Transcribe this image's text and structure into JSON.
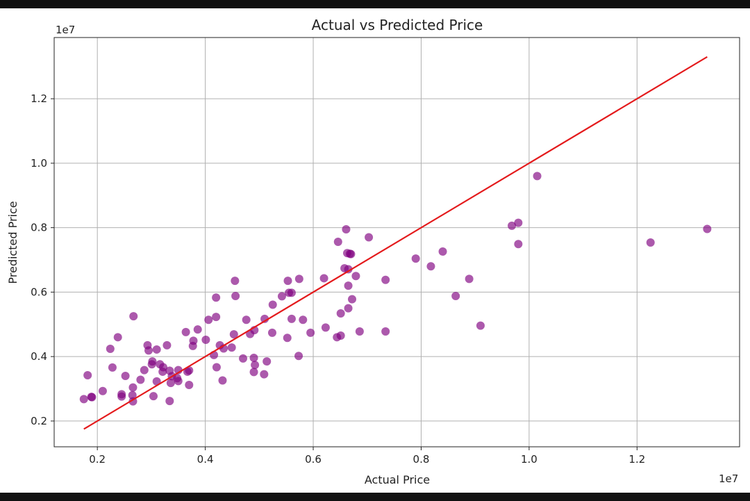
{
  "chart_data": {
    "type": "scatter",
    "title": "Actual vs Predicted Price",
    "xlabel": "Actual Price",
    "ylabel": "Predicted Price",
    "x_offset_label": "1e7",
    "y_offset_label": "1e7",
    "xlim": [
      1200000,
      13900000
    ],
    "ylim": [
      1200000,
      13900000
    ],
    "x_ticks": [
      2000000,
      4000000,
      6000000,
      8000000,
      10000000,
      12000000
    ],
    "x_tick_labels": [
      "0.2",
      "0.4",
      "0.6",
      "0.8",
      "1.0",
      "1.2"
    ],
    "y_ticks": [
      2000000,
      4000000,
      6000000,
      8000000,
      10000000,
      12000000
    ],
    "y_tick_labels": [
      "0.2",
      "0.4",
      "0.6",
      "0.8",
      "1.0",
      "1.2"
    ],
    "grid": true,
    "point_color": "#800080",
    "line_color": "#e41a1c",
    "reference_line": [
      [
        1750000,
        1750000
      ],
      [
        13300000,
        13300000
      ]
    ],
    "points": [
      [
        1750000,
        2680000
      ],
      [
        1820000,
        3420000
      ],
      [
        1890000,
        2750000
      ],
      [
        1900000,
        2740000
      ],
      [
        2100000,
        2930000
      ],
      [
        2240000,
        4240000
      ],
      [
        2280000,
        3660000
      ],
      [
        2380000,
        4600000
      ],
      [
        2450000,
        2760000
      ],
      [
        2450000,
        2830000
      ],
      [
        2520000,
        3400000
      ],
      [
        2650000,
        2800000
      ],
      [
        2660000,
        2610000
      ],
      [
        2660000,
        3040000
      ],
      [
        2670000,
        5250000
      ],
      [
        2800000,
        3280000
      ],
      [
        2870000,
        3580000
      ],
      [
        2930000,
        4350000
      ],
      [
        2950000,
        4190000
      ],
      [
        3010000,
        3760000
      ],
      [
        3020000,
        3850000
      ],
      [
        3040000,
        2770000
      ],
      [
        3100000,
        4220000
      ],
      [
        3100000,
        3230000
      ],
      [
        3160000,
        3760000
      ],
      [
        3210000,
        3530000
      ],
      [
        3220000,
        3670000
      ],
      [
        3290000,
        4350000
      ],
      [
        3340000,
        3560000
      ],
      [
        3340000,
        2620000
      ],
      [
        3360000,
        3180000
      ],
      [
        3380000,
        3390000
      ],
      [
        3480000,
        3330000
      ],
      [
        3500000,
        3240000
      ],
      [
        3500000,
        3580000
      ],
      [
        3640000,
        4760000
      ],
      [
        3670000,
        3530000
      ],
      [
        3700000,
        3570000
      ],
      [
        3700000,
        3120000
      ],
      [
        3770000,
        4330000
      ],
      [
        3780000,
        4490000
      ],
      [
        3860000,
        4840000
      ],
      [
        4010000,
        4520000
      ],
      [
        4060000,
        5140000
      ],
      [
        4160000,
        4050000
      ],
      [
        4200000,
        5230000
      ],
      [
        4200000,
        5830000
      ],
      [
        4210000,
        3670000
      ],
      [
        4270000,
        4350000
      ],
      [
        4320000,
        3260000
      ],
      [
        4340000,
        4250000
      ],
      [
        4490000,
        4280000
      ],
      [
        4530000,
        4690000
      ],
      [
        4550000,
        6350000
      ],
      [
        4560000,
        5880000
      ],
      [
        4700000,
        3940000
      ],
      [
        4760000,
        5140000
      ],
      [
        4830000,
        4700000
      ],
      [
        4900000,
        3520000
      ],
      [
        4900000,
        3960000
      ],
      [
        4910000,
        4820000
      ],
      [
        4920000,
        3740000
      ],
      [
        5090000,
        3450000
      ],
      [
        5100000,
        5170000
      ],
      [
        5140000,
        3850000
      ],
      [
        5240000,
        4740000
      ],
      [
        5250000,
        5610000
      ],
      [
        5420000,
        5870000
      ],
      [
        5520000,
        4580000
      ],
      [
        5530000,
        6350000
      ],
      [
        5550000,
        5980000
      ],
      [
        5600000,
        5170000
      ],
      [
        5600000,
        5980000
      ],
      [
        5730000,
        4020000
      ],
      [
        5740000,
        6410000
      ],
      [
        5810000,
        5140000
      ],
      [
        5950000,
        4740000
      ],
      [
        6200000,
        6430000
      ],
      [
        6230000,
        4900000
      ],
      [
        6440000,
        4600000
      ],
      [
        6460000,
        7560000
      ],
      [
        6510000,
        5340000
      ],
      [
        6510000,
        4650000
      ],
      [
        6580000,
        6740000
      ],
      [
        6610000,
        7950000
      ],
      [
        6630000,
        7210000
      ],
      [
        6650000,
        5500000
      ],
      [
        6650000,
        6710000
      ],
      [
        6650000,
        6200000
      ],
      [
        6680000,
        7190000
      ],
      [
        6700000,
        7180000
      ],
      [
        6720000,
        5780000
      ],
      [
        6790000,
        6500000
      ],
      [
        6860000,
        4780000
      ],
      [
        7030000,
        7700000
      ],
      [
        7340000,
        6380000
      ],
      [
        7340000,
        4780000
      ],
      [
        7900000,
        7040000
      ],
      [
        8180000,
        6800000
      ],
      [
        8400000,
        7260000
      ],
      [
        8640000,
        5880000
      ],
      [
        8890000,
        6410000
      ],
      [
        9100000,
        4960000
      ],
      [
        9680000,
        8060000
      ],
      [
        9800000,
        8150000
      ],
      [
        9800000,
        7490000
      ],
      [
        10150000,
        9600000
      ],
      [
        12250000,
        7540000
      ],
      [
        13300000,
        7960000
      ]
    ]
  }
}
